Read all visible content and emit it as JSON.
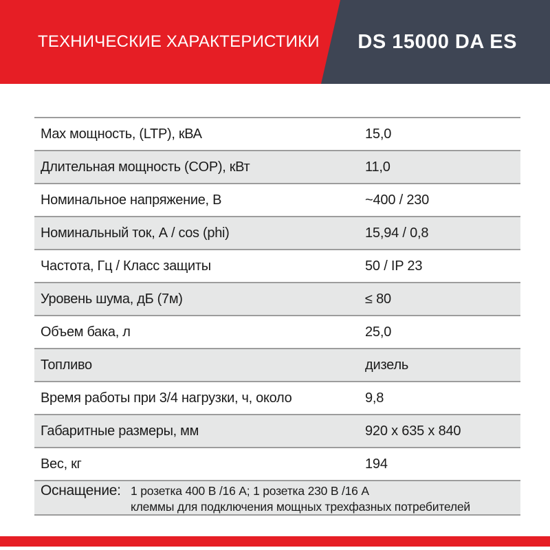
{
  "header": {
    "title": "ТЕХНИЧЕСКИЕ ХАРАКТЕРИСТИКИ",
    "model": "DS 15000 DA ES"
  },
  "table": {
    "rows": [
      {
        "label": "Max мощность, (LTP), кВА",
        "value": "15,0"
      },
      {
        "label": "Длительная мощность (COP), кВт",
        "value": "11,0"
      },
      {
        "label": "Номинальное напряжение, В",
        "value": "~400 / 230"
      },
      {
        "label": "Номинальный ток, А / cos (phi)",
        "value": "15,94 / 0,8"
      },
      {
        "label": "Частота, Гц / Класс защиты",
        "value": "50 / IP 23"
      },
      {
        "label": "Уровень шума, дБ (7м)",
        "value": "≤ 80"
      },
      {
        "label": "Объем бака, л",
        "value": "25,0"
      },
      {
        "label": "Топливо",
        "value": "дизель"
      },
      {
        "label": "Время работы при 3/4 нагрузки, ч, около",
        "value": "9,8"
      },
      {
        "label": "Габаритные размеры, мм",
        "value": "920 x 635 x 840"
      },
      {
        "label": "Вес, кг",
        "value": "194"
      }
    ],
    "equipment": {
      "label": "Оснащение:",
      "line1": "1 розетка 400 В /16 А; 1 розетка 230 В /16 А",
      "line2": "клеммы для подключения мощных трехфазных потребителей"
    }
  },
  "colors": {
    "accent_red": "#e61e25",
    "header_dark": "#3e4554",
    "stripe_gray": "#e6e7e7",
    "rule_gray": "#9c9c9c",
    "text": "#1b1b1b"
  }
}
